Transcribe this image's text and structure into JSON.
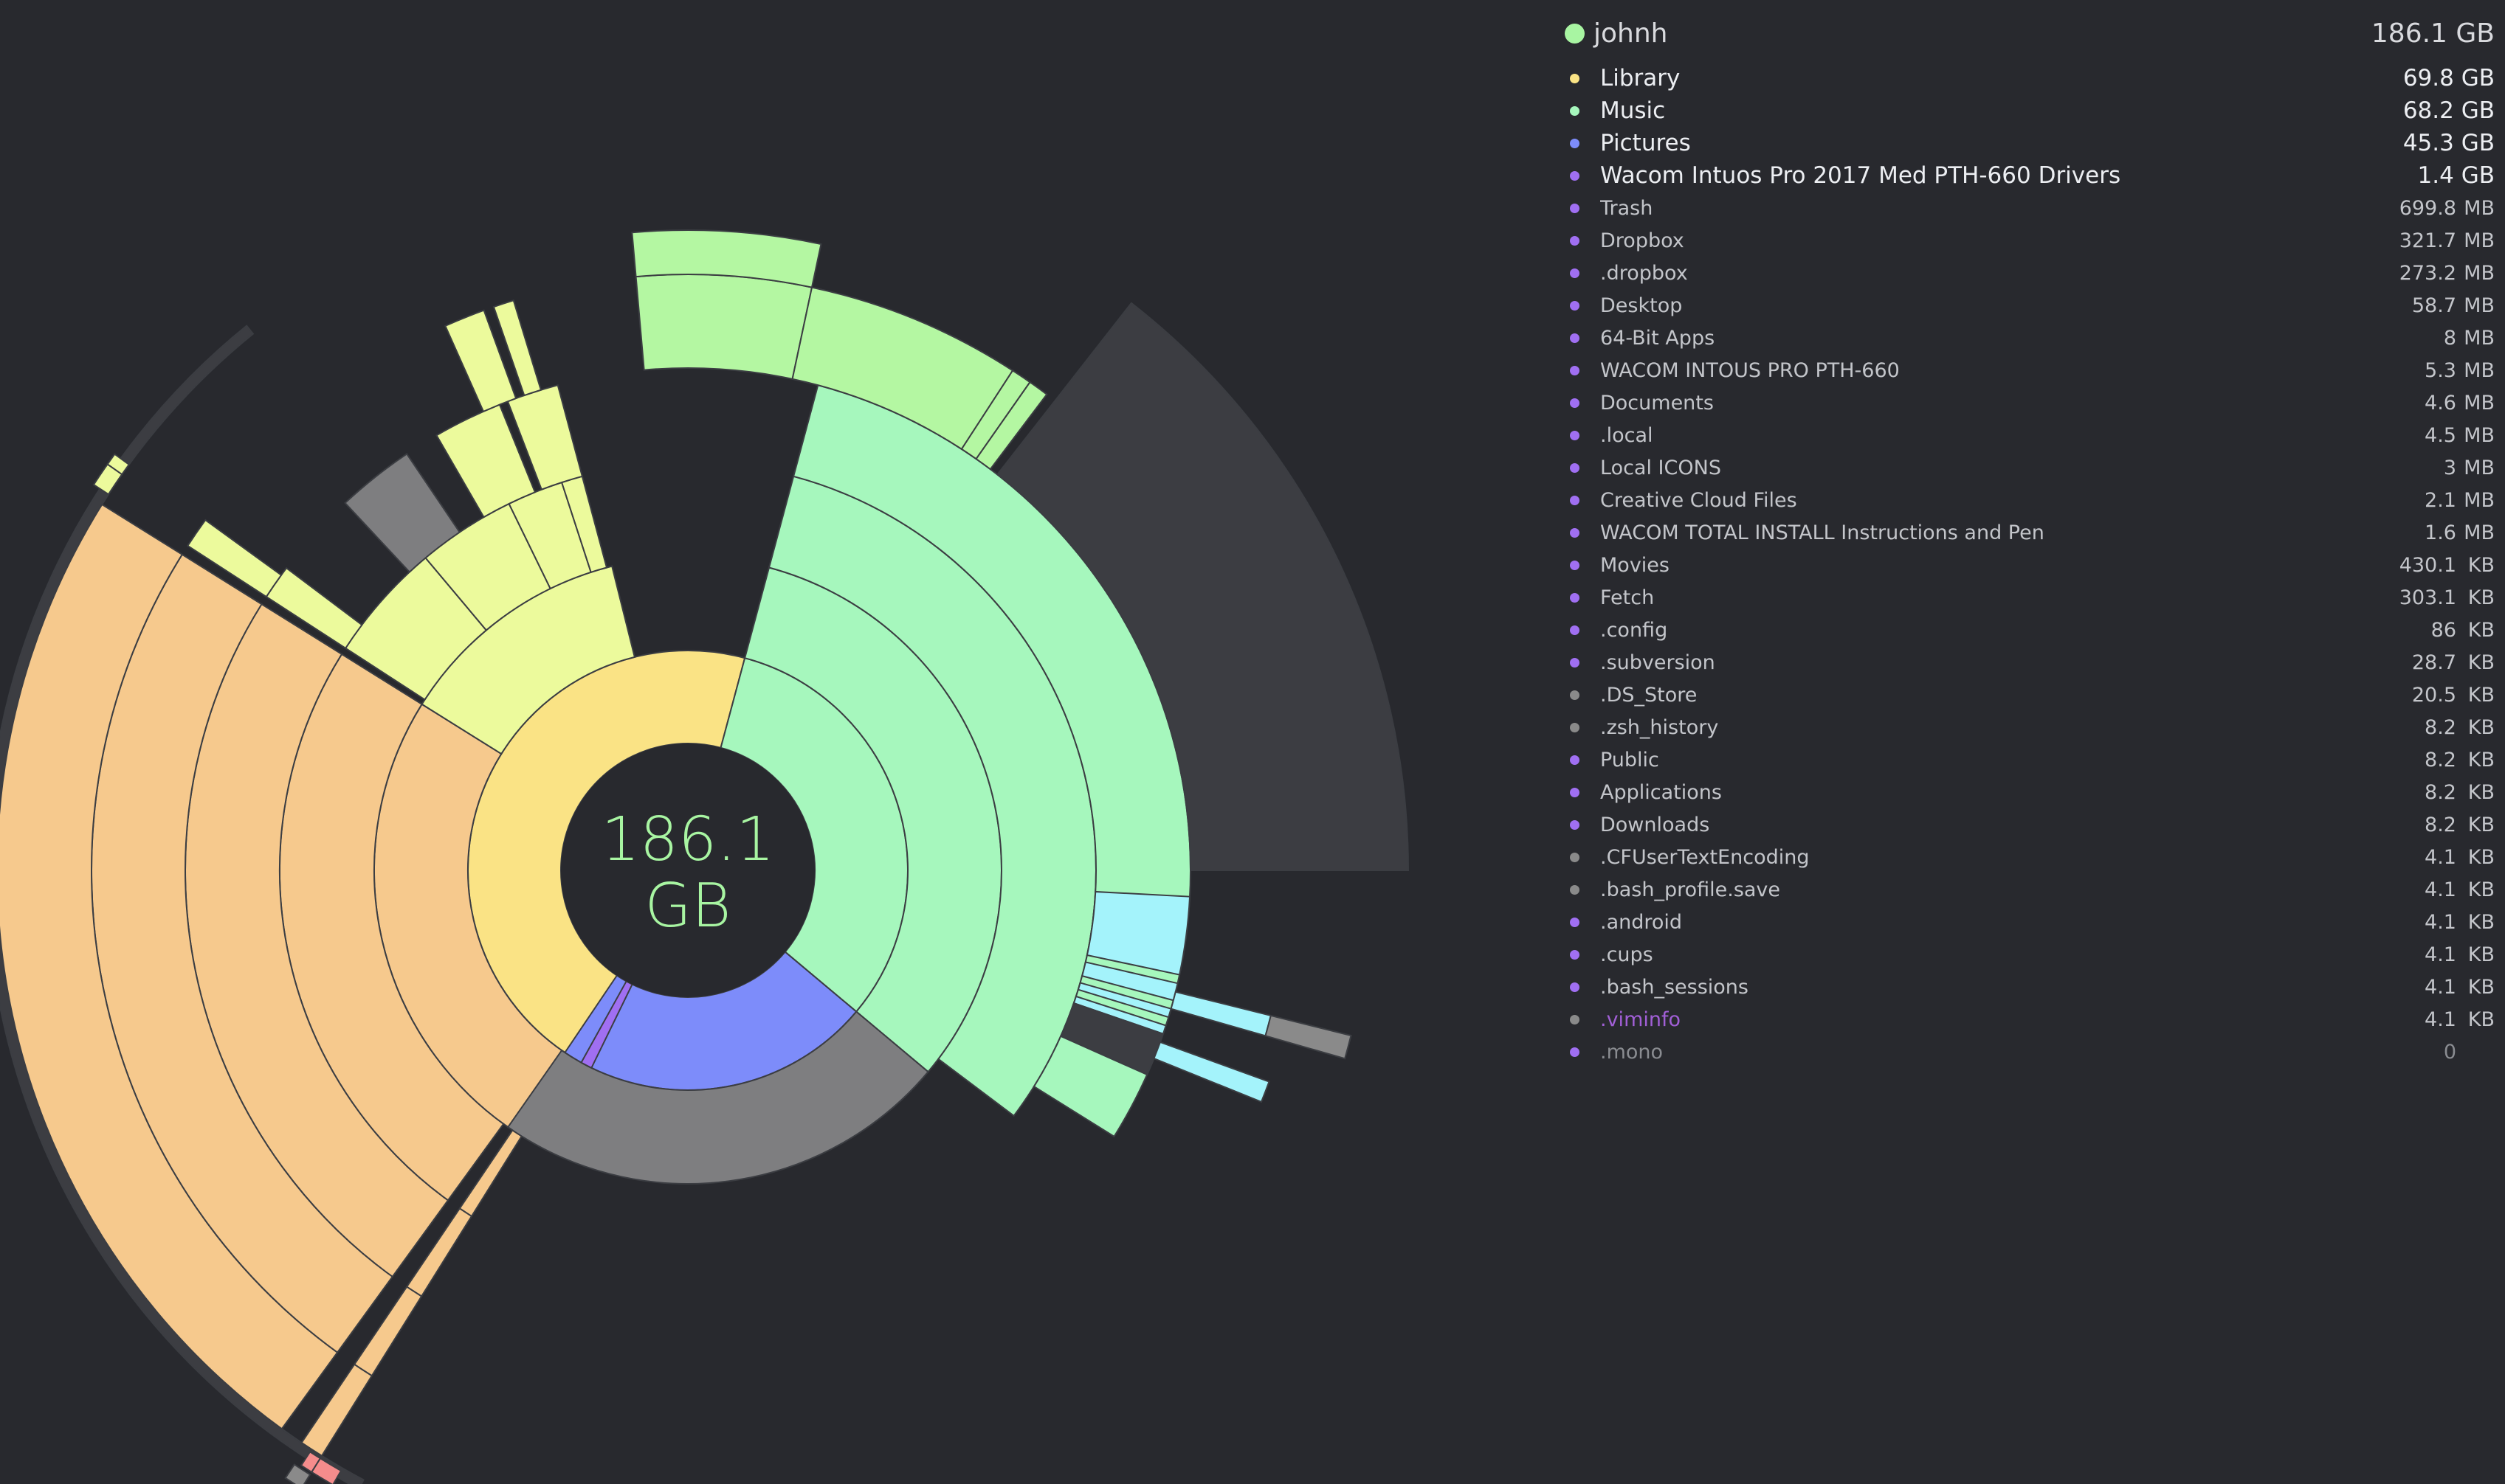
{
  "colors": {
    "background": "#28292e",
    "center_text": "#a8f5a2",
    "root_dot": "#a8f5a2",
    "library": "#fae385",
    "library_outer": "#f6c98d",
    "library_dirs": "#ecfa9c",
    "music": "#a6f7bd",
    "music_outer": "#b4f7a2",
    "pictures": "#7d8cfa",
    "pictures_outer": "#7e7e80",
    "cyan": "#a4f3fb",
    "gray_shadow": "#3c3d42",
    "purple": "#a06ff2",
    "red": "#f58c8c",
    "gray_file": "#8a8a8a"
  },
  "center": {
    "line1": "186.1",
    "line2": "GB"
  },
  "root": {
    "name": "johnh",
    "size": "186.1 GB",
    "dot_color": "#a8f5a2"
  },
  "items": [
    {
      "name": "Library",
      "value": "69.8 GB",
      "num": "",
      "unit": "",
      "dot": "#fae385",
      "style": "big"
    },
    {
      "name": "Music",
      "value": "68.2 GB",
      "num": "",
      "unit": "",
      "dot": "#a6f7bd",
      "style": "big"
    },
    {
      "name": "Pictures",
      "value": "45.3 GB",
      "num": "",
      "unit": "",
      "dot": "#7d8cfa",
      "style": "big"
    },
    {
      "name": "Wacom Intuos Pro 2017 Med PTH-660 Drivers",
      "value": "1.4 GB",
      "num": "",
      "unit": "",
      "dot": "#a06ff2",
      "style": "big"
    },
    {
      "name": "Trash",
      "value": "",
      "num": "699.8",
      "unit": "MB",
      "dot": "#a06ff2",
      "style": "small"
    },
    {
      "name": "Dropbox",
      "value": "",
      "num": "321.7",
      "unit": "MB",
      "dot": "#a06ff2",
      "style": "small"
    },
    {
      "name": ".dropbox",
      "value": "",
      "num": "273.2",
      "unit": "MB",
      "dot": "#a06ff2",
      "style": "small"
    },
    {
      "name": "Desktop",
      "value": "",
      "num": "58.7",
      "unit": "MB",
      "dot": "#a06ff2",
      "style": "small"
    },
    {
      "name": "64-Bit Apps",
      "value": "",
      "num": "8",
      "unit": "MB",
      "dot": "#a06ff2",
      "style": "small"
    },
    {
      "name": "WACOM INTOUS PRO PTH-660",
      "value": "",
      "num": "5.3",
      "unit": "MB",
      "dot": "#a06ff2",
      "style": "small"
    },
    {
      "name": "Documents",
      "value": "",
      "num": "4.6",
      "unit": "MB",
      "dot": "#a06ff2",
      "style": "small"
    },
    {
      "name": ".local",
      "value": "",
      "num": "4.5",
      "unit": "MB",
      "dot": "#a06ff2",
      "style": "small"
    },
    {
      "name": "Local ICONS",
      "value": "",
      "num": "3",
      "unit": "MB",
      "dot": "#a06ff2",
      "style": "small"
    },
    {
      "name": "Creative Cloud Files",
      "value": "",
      "num": "2.1",
      "unit": "MB",
      "dot": "#a06ff2",
      "style": "small"
    },
    {
      "name": "WACOM TOTAL INSTALL Instructions and Pen",
      "value": "",
      "num": "1.6",
      "unit": "MB",
      "dot": "#a06ff2",
      "style": "small"
    },
    {
      "name": "Movies",
      "value": "",
      "num": "430.1",
      "unit": "KB",
      "dot": "#a06ff2",
      "style": "small"
    },
    {
      "name": "Fetch",
      "value": "",
      "num": "303.1",
      "unit": "KB",
      "dot": "#a06ff2",
      "style": "small"
    },
    {
      "name": ".config",
      "value": "",
      "num": "86",
      "unit": "KB",
      "dot": "#a06ff2",
      "style": "small"
    },
    {
      "name": ".subversion",
      "value": "",
      "num": "28.7",
      "unit": "KB",
      "dot": "#a06ff2",
      "style": "small"
    },
    {
      "name": ".DS_Store",
      "value": "",
      "num": "20.5",
      "unit": "KB",
      "dot": "#8a8a8a",
      "style": "small"
    },
    {
      "name": ".zsh_history",
      "value": "",
      "num": "8.2",
      "unit": "KB",
      "dot": "#8a8a8a",
      "style": "small"
    },
    {
      "name": "Public",
      "value": "",
      "num": "8.2",
      "unit": "KB",
      "dot": "#a06ff2",
      "style": "small"
    },
    {
      "name": "Applications",
      "value": "",
      "num": "8.2",
      "unit": "KB",
      "dot": "#a06ff2",
      "style": "small"
    },
    {
      "name": "Downloads",
      "value": "",
      "num": "8.2",
      "unit": "KB",
      "dot": "#a06ff2",
      "style": "small"
    },
    {
      "name": ".CFUserTextEncoding",
      "value": "",
      "num": "4.1",
      "unit": "KB",
      "dot": "#8a8a8a",
      "style": "small"
    },
    {
      "name": ".bash_profile.save",
      "value": "",
      "num": "4.1",
      "unit": "KB",
      "dot": "#8a8a8a",
      "style": "small"
    },
    {
      "name": ".android",
      "value": "",
      "num": "4.1",
      "unit": "KB",
      "dot": "#a06ff2",
      "style": "small"
    },
    {
      "name": ".cups",
      "value": "",
      "num": "4.1",
      "unit": "KB",
      "dot": "#a06ff2",
      "style": "small"
    },
    {
      "name": ".bash_sessions",
      "value": "",
      "num": "4.1",
      "unit": "KB",
      "dot": "#a06ff2",
      "style": "small"
    },
    {
      "name": ".viminfo",
      "value": "",
      "num": "4.1",
      "unit": "KB",
      "dot": "#8a8a8a",
      "style": "accent"
    },
    {
      "name": ".mono",
      "value": "",
      "num": "0",
      "unit": "",
      "dot": "#a06ff2",
      "style": "muted"
    }
  ]
}
